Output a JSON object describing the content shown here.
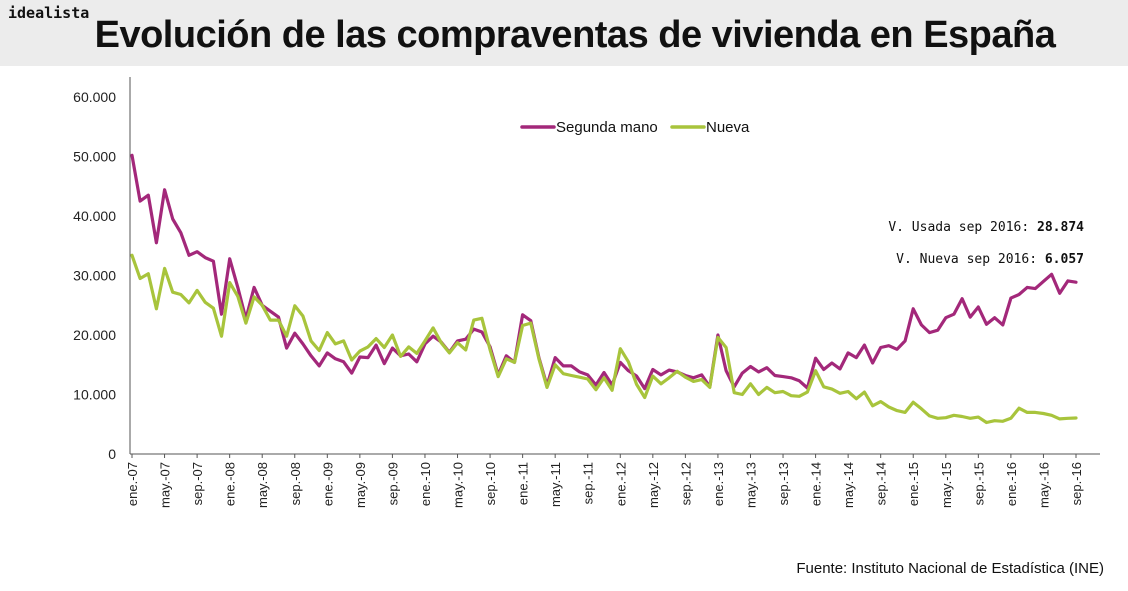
{
  "brand": "idealista",
  "title": "Evolución de las compraventas de vivienda en España",
  "source": "Fuente: Instituto Nacional de Estadística (INE)",
  "chart_data": {
    "type": "line",
    "title": "Evolución de las compraventas de vivienda en España",
    "xlabel": "",
    "ylabel": "",
    "ylim": [
      0,
      60000
    ],
    "y_ticks": [
      "0",
      "10.000",
      "20.000",
      "30.000",
      "40.000",
      "50.000",
      "60.000"
    ],
    "grid": false,
    "legend_position": "top-center",
    "x_tick_labels": [
      "ene.-07",
      "may.-07",
      "sep.-07",
      "ene.-08",
      "may.-08",
      "sep.-08",
      "ene.-09",
      "may.-09",
      "sep.-09",
      "ene.-10",
      "may.-10",
      "sep.-10",
      "ene.-11",
      "may.-11",
      "sep.-11",
      "ene.-12",
      "may.-12",
      "sep.-12",
      "ene.-13",
      "may.-13",
      "sep.-13",
      "ene.-14",
      "may.-14",
      "sep.-14",
      "ene.-15",
      "may.-15",
      "sep.-15",
      "ene.-16",
      "may.-16",
      "sep.-16"
    ],
    "series": [
      {
        "name": "Segunda mano",
        "color": "#a3287a",
        "values": [
          50200,
          42500,
          43500,
          35500,
          44400,
          39500,
          37200,
          33400,
          34000,
          33000,
          32400,
          23500,
          32800,
          28000,
          22700,
          28000,
          25000,
          24000,
          23000,
          17800,
          20300,
          18500,
          16500,
          14800,
          17000,
          16000,
          15500,
          13600,
          16300,
          16200,
          18300,
          15200,
          17800,
          16500,
          16800,
          15500,
          18500,
          19800,
          18800,
          17100,
          19000,
          19300,
          21000,
          20500,
          18000,
          13300,
          16500,
          15400,
          23400,
          22400,
          16200,
          11500,
          16200,
          14800,
          14800,
          13800,
          13300,
          11600,
          13700,
          11600,
          15400,
          14000,
          13100,
          11000,
          14200,
          13300,
          14100,
          13800,
          13200,
          12800,
          13300,
          11300,
          20000,
          14000,
          11300,
          13600,
          14700,
          13800,
          14500,
          13200,
          13000,
          12800,
          12300,
          11100,
          16100,
          14200,
          15300,
          14300,
          17000,
          16200,
          18300,
          15300,
          17900,
          18200,
          17600,
          19000,
          24400,
          21700,
          20400,
          20800,
          22900,
          23500,
          26100,
          23000,
          24700,
          21800,
          22900,
          21700,
          26200,
          26800,
          28000,
          27800,
          29000,
          30200,
          27000,
          29100,
          28874
        ],
        "annotation_label": "V. Usada sep 2016:",
        "annotation_value": "28.874"
      },
      {
        "name": "Nueva",
        "color": "#a8c43c",
        "values": [
          33400,
          29500,
          30300,
          24400,
          31200,
          27200,
          26800,
          25400,
          27500,
          25500,
          24500,
          19800,
          28800,
          26500,
          22000,
          26400,
          25000,
          22500,
          22500,
          19800,
          24900,
          23200,
          19000,
          17400,
          20400,
          18500,
          19000,
          15800,
          17300,
          18000,
          19400,
          17900,
          20000,
          16400,
          18000,
          16900,
          19000,
          21200,
          18700,
          17000,
          18700,
          17500,
          22500,
          22800,
          17500,
          13000,
          16000,
          15400,
          21600,
          22000,
          16000,
          11200,
          15000,
          13500,
          13200,
          12900,
          12600,
          10800,
          12800,
          10700,
          17700,
          15500,
          11700,
          9500,
          13100,
          11800,
          12800,
          13900,
          12900,
          12200,
          12500,
          11200,
          19600,
          17900,
          10300,
          10000,
          11800,
          10000,
          11200,
          10300,
          10500,
          9800,
          9700,
          10400,
          14000,
          11300,
          10900,
          10200,
          10500,
          9300,
          10400,
          8100,
          8800,
          7900,
          7300,
          7000,
          8700,
          7600,
          6400,
          6000,
          6100,
          6500,
          6300,
          6000,
          6200,
          5300,
          5600,
          5500,
          6000,
          7700,
          7000,
          7000,
          6800,
          6500,
          5900,
          6000,
          6057
        ],
        "annotation_label": "V. Nueva sep 2016:",
        "annotation_value": "6.057"
      }
    ]
  }
}
